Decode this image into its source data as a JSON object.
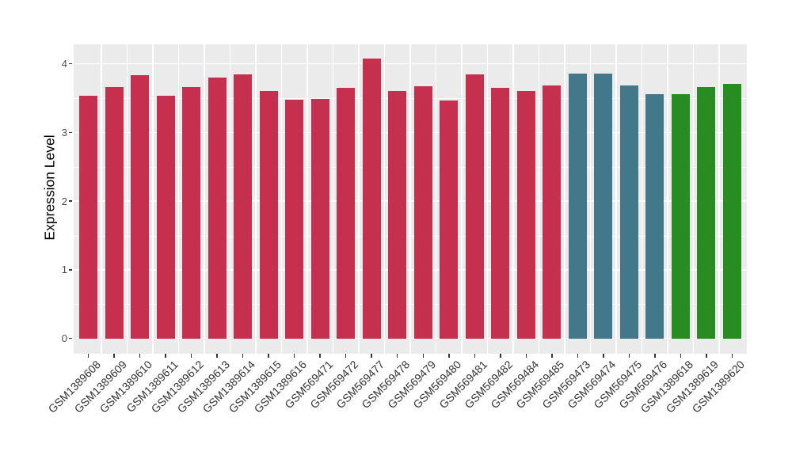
{
  "chart_data": {
    "type": "bar",
    "title": "",
    "xlabel": "",
    "ylabel": "Expression Level",
    "categories": [
      "GSM1389608",
      "GSM1389609",
      "GSM1389610",
      "GSM1389611",
      "GSM1389612",
      "GSM1389613",
      "GSM1389614",
      "GSM1389615",
      "GSM1389616",
      "GSM569471",
      "GSM569472",
      "GSM569477",
      "GSM569478",
      "GSM569479",
      "GSM569480",
      "GSM569481",
      "GSM569482",
      "GSM569484",
      "GSM569485",
      "GSM569473",
      "GSM569474",
      "GSM569475",
      "GSM569476",
      "GSM1389618",
      "GSM1389619",
      "GSM1389620"
    ],
    "values": [
      3.53,
      3.66,
      3.84,
      3.53,
      3.66,
      3.8,
      3.85,
      3.61,
      3.48,
      3.49,
      3.65,
      4.08,
      3.61,
      3.67,
      3.47,
      3.85,
      3.65,
      3.61,
      3.68,
      3.86,
      3.86,
      3.69,
      3.56,
      3.56,
      3.66,
      3.71
    ],
    "bar_colors": [
      "#C4304D",
      "#C4304D",
      "#C4304D",
      "#C4304D",
      "#C4304D",
      "#C4304D",
      "#C4304D",
      "#C4304D",
      "#C4304D",
      "#C4304D",
      "#C4304D",
      "#C4304D",
      "#C4304D",
      "#C4304D",
      "#C4304D",
      "#C4304D",
      "#C4304D",
      "#C4304D",
      "#C4304D",
      "#43788A",
      "#43788A",
      "#43788A",
      "#43788A",
      "#288C23",
      "#288C23",
      "#288C23"
    ],
    "y_ticks": [
      0,
      1,
      2,
      3,
      4
    ],
    "y_tick_labels": [
      "0",
      "1",
      "2",
      "3",
      "4"
    ],
    "y_minor_ticks": [
      0.5,
      1.5,
      2.5,
      3.5
    ],
    "ylim": [
      0,
      4.25
    ],
    "grid": "on",
    "legend": "none",
    "panel_bg": "#EBEBEB",
    "grid_color": "#FFFFFF",
    "tick_color": "#333333",
    "y_tick_label_color": "#4D4D4D",
    "x_tick_label_color": "#333333"
  }
}
